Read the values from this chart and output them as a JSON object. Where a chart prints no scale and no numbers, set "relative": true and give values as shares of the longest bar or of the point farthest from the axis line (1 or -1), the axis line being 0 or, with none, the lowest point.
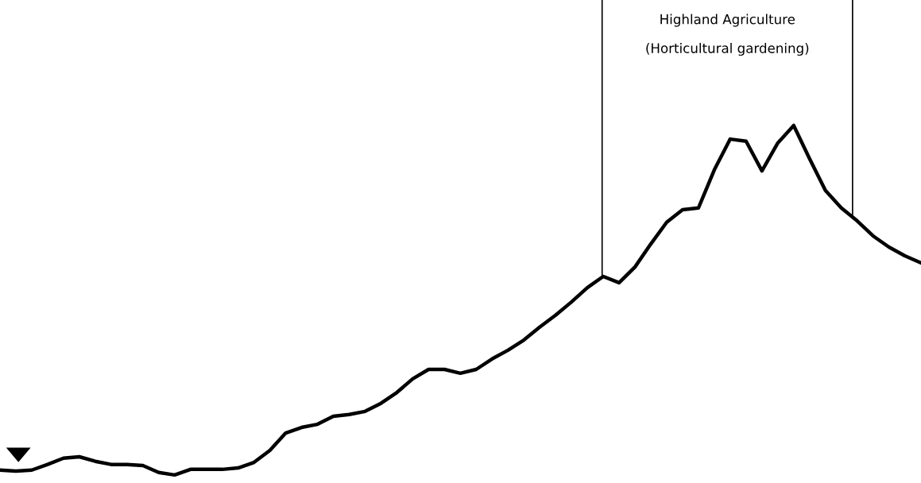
{
  "chart_data": {
    "type": "line",
    "relative": true,
    "categories": [
      null,
      null,
      null,
      null,
      null,
      null,
      null,
      null,
      null,
      null,
      null,
      null,
      null,
      null,
      null,
      null,
      null,
      null,
      null,
      null,
      null,
      null,
      null,
      null,
      null,
      null,
      null,
      null,
      null,
      null,
      null,
      null,
      null,
      null,
      null,
      null,
      null,
      null,
      null,
      null,
      null,
      null,
      null,
      null,
      null,
      null,
      null,
      null,
      null,
      null,
      null,
      null,
      null,
      null,
      null,
      null,
      null,
      null,
      null
    ],
    "values": [
      0.014,
      0.011,
      0.014,
      0.03,
      0.048,
      0.052,
      0.039,
      0.03,
      0.03,
      0.027,
      0.007,
      0,
      0.016,
      0.016,
      0.016,
      0.02,
      0.036,
      0.07,
      0.12,
      0.136,
      0.145,
      0.168,
      0.173,
      0.182,
      0.205,
      0.236,
      0.275,
      0.302,
      0.302,
      0.291,
      0.302,
      0.332,
      0.357,
      0.386,
      0.423,
      0.457,
      0.495,
      0.536,
      0.568,
      0.55,
      0.595,
      0.661,
      0.723,
      0.759,
      0.764,
      0.873,
      0.961,
      0.955,
      0.87,
      0.95,
      1.0,
      0.905,
      0.814,
      0.764,
      0.727,
      0.684,
      0.652,
      0.627,
      0.607
    ],
    "color": "#000000",
    "line_style": "solid",
    "marker": "none",
    "annotations": [
      "Highland Agriculture\n(Horticultural gardening)"
    ]
  }
}
